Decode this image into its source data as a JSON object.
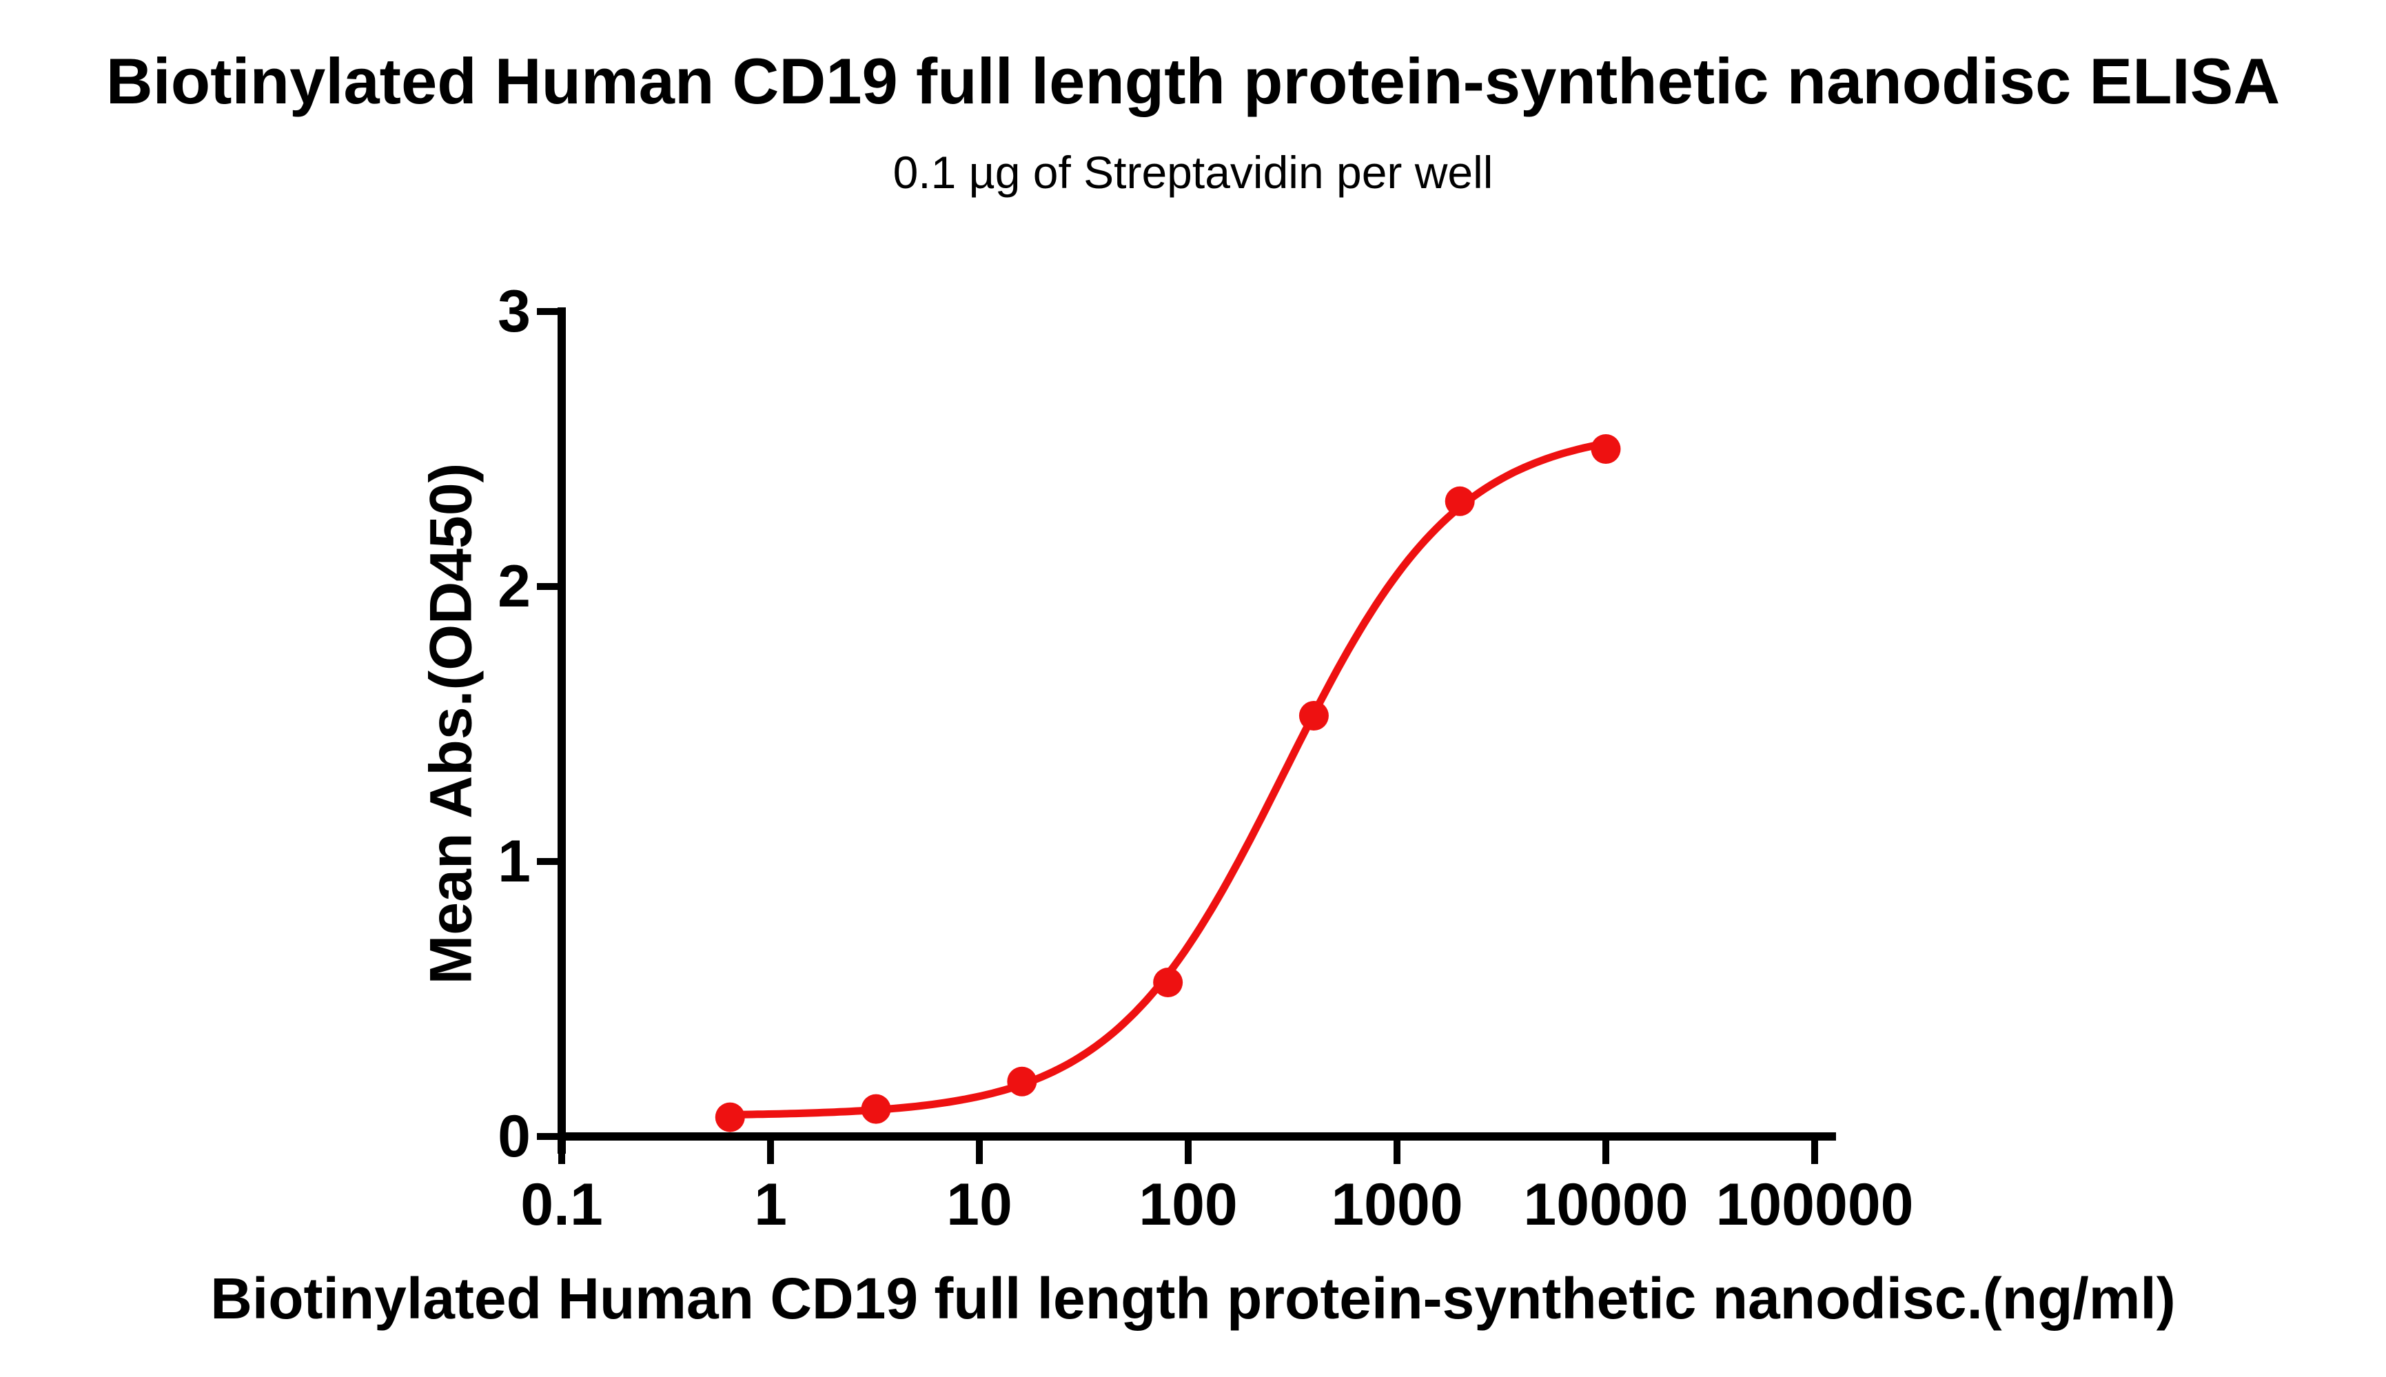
{
  "chart_data": {
    "type": "scatter",
    "title": "Biotinylated Human CD19 full length protein-synthetic nanodisc ELISA",
    "subtitle": "0.1 µg of Streptavidin per well",
    "xlabel": "Biotinylated Human CD19 full length protein-synthetic nanodisc.(ng/ml)",
    "ylabel": "Mean Abs.(OD450)",
    "x_scale": "log10",
    "xlim": [
      0.1,
      100000
    ],
    "ylim": [
      0,
      3
    ],
    "x_ticks": [
      0.1,
      1,
      10,
      100,
      1000,
      10000,
      100000
    ],
    "x_tick_labels": [
      "0.1",
      "1",
      "10",
      "100",
      "1000",
      "10000",
      "100000"
    ],
    "y_ticks": [
      0,
      1,
      2,
      3
    ],
    "y_tick_labels": [
      "0",
      "1",
      "2",
      "3"
    ],
    "grid": false,
    "legend": "none",
    "axis_color": "#000000",
    "series": [
      {
        "name": "Biotinylated Human CD19 full length protein-synthetic nanodisc",
        "color": "#ee1111",
        "marker": "circle",
        "x": [
          0.64,
          3.2,
          16,
          80,
          400,
          2000,
          10000
        ],
        "y": [
          0.07,
          0.1,
          0.2,
          0.56,
          1.53,
          2.31,
          2.5
        ]
      }
    ],
    "fit_curve": {
      "model": "4PL",
      "bottom": 0.075,
      "top": 2.58,
      "ec50": 290,
      "hill": 1.05
    }
  }
}
